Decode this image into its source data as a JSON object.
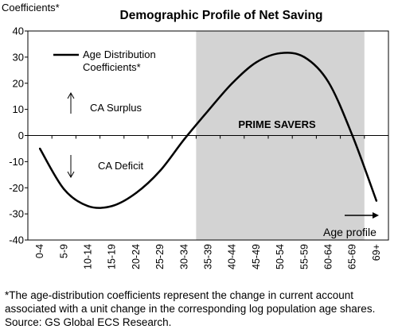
{
  "chart_data": {
    "type": "line",
    "title": "Demographic Profile of Net Saving",
    "ylabel": "Coefficients*",
    "xlabel": "",
    "ylim": [
      -40,
      40
    ],
    "yticks": [
      -40,
      -30,
      -20,
      -10,
      0,
      10,
      20,
      30,
      40
    ],
    "grid": false,
    "categories": [
      "0-4",
      "5-9",
      "10-14",
      "15-19",
      "20-24",
      "25-29",
      "30-34",
      "35-39",
      "40-44",
      "45-49",
      "50-54",
      "55-59",
      "60-64",
      "65-69",
      "69+"
    ],
    "series": [
      {
        "name": "Age Distribution Coefficients*",
        "values": [
          -5,
          -20.5,
          -27,
          -27,
          -22,
          -13.5,
          -1.5,
          9.5,
          20,
          28,
          31.5,
          30,
          20.5,
          0,
          -25
        ]
      }
    ],
    "shaded_region": {
      "from": "35-39",
      "to": "65-69",
      "label": "PRIME SAVERS",
      "color": "#d3d3d3"
    },
    "legend": {
      "line1": "Age Distribution",
      "line2": "Coefficients*",
      "placement": "top-left"
    },
    "annotations": {
      "surplus": "CA Surplus",
      "deficit": "CA Deficit",
      "age_profile": "Age profile"
    },
    "footnote": "*The age-distribution coefficients represent the change in current account associated with a unit change in the corresponding log population age shares. Source: GS Global ECS Research."
  }
}
